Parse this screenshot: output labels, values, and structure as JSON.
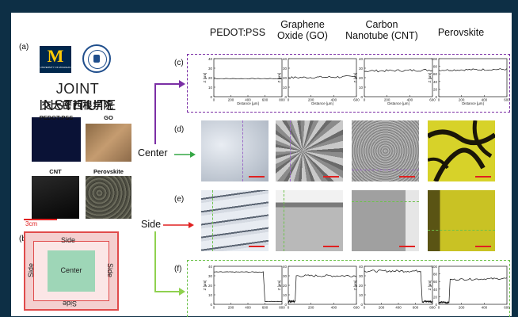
{
  "panels": {
    "a": "(a)",
    "b": "(b)",
    "c": "(c)",
    "d": "(d)",
    "e": "(e)",
    "f": "(f)"
  },
  "columns": [
    {
      "line1": "PEDOT:PSS",
      "line2": ""
    },
    {
      "line1": "Graphene",
      "line2": "Oxide (GO)"
    },
    {
      "line1": "Carbon",
      "line2": "Nanotube (CNT)"
    },
    {
      "line1": "Perovskite",
      "line2": ""
    }
  ],
  "logo": {
    "university": "UNIVERSITY OF MICHIGAN",
    "m": "M",
    "institute": "JOINT INSTITUTE",
    "chinese": "交大密西根学院"
  },
  "samples": [
    "PEDOT:PSS",
    "GO",
    "CNT",
    "Perovskite"
  ],
  "scale_label": "3cm",
  "schematic": {
    "center": "Center",
    "side_top": "Side",
    "side_right": "Side",
    "side_left": "Side",
    "side_bottom": "Side"
  },
  "rows": {
    "center": "Center",
    "side": "Side"
  },
  "profile_axes": {
    "y_label": "Z [µm]",
    "x_label": "Distance [µm]"
  },
  "colors": {
    "purple": "#7b2fa5",
    "green": "#6cc24a",
    "red": "#e02020",
    "background": "#0d2f45"
  },
  "chart_data": [
    {
      "type": "line",
      "title": "PEDOT:PSS center",
      "xlabel": "Distance [µm]",
      "ylabel": "Z [µm]",
      "xlim": [
        0,
        800
      ],
      "ylim": [
        0,
        40
      ],
      "x_ticks": [
        "0",
        "200",
        "400",
        "600",
        "800"
      ],
      "y_ticks": [
        "0",
        "10",
        "20",
        "30",
        "40"
      ],
      "series": [
        {
          "x": [
            0,
            800
          ],
          "y": [
            19,
            19
          ]
        }
      ]
    },
    {
      "type": "line",
      "title": "GO center",
      "xlabel": "Distance [µm]",
      "ylabel": "Z [µm]",
      "xlim": [
        0,
        600
      ],
      "ylim": [
        0,
        40
      ],
      "x_ticks": [
        "0",
        "200",
        "400",
        "600"
      ],
      "y_ticks": [
        "0",
        "10",
        "20",
        "30",
        "40"
      ],
      "series": [
        {
          "x": [
            0,
            600
          ],
          "y": [
            20,
            21
          ]
        }
      ]
    },
    {
      "type": "line",
      "title": "CNT center",
      "xlabel": "Distance [µm]",
      "ylabel": "Z [µm]",
      "xlim": [
        0,
        600
      ],
      "ylim": [
        0,
        40
      ],
      "x_ticks": [
        "0",
        "200",
        "400",
        "600"
      ],
      "y_ticks": [
        "0",
        "10",
        "20",
        "30",
        "40"
      ],
      "series": [
        {
          "x": [
            0,
            600
          ],
          "y": [
            27,
            28
          ]
        }
      ]
    },
    {
      "type": "line",
      "title": "Perovskite center",
      "xlabel": "Distance [µm]",
      "ylabel": "Z [µm]",
      "xlim": [
        0,
        600
      ],
      "ylim": [
        0,
        100
      ],
      "x_ticks": [
        "0",
        "200",
        "400",
        "600"
      ],
      "y_ticks": [
        "0",
        "20",
        "40",
        "60",
        "80",
        "100"
      ],
      "series": [
        {
          "x": [
            0,
            600
          ],
          "y": [
            70,
            72
          ]
        }
      ]
    },
    {
      "type": "line",
      "title": "PEDOT:PSS side",
      "xlabel": "Distance [µm]",
      "ylabel": "Z [µm]",
      "xlim": [
        0,
        800
      ],
      "ylim": [
        0,
        40
      ],
      "x_ticks": [
        "0",
        "200",
        "400",
        "600",
        "800"
      ],
      "y_ticks": [
        "0",
        "10",
        "20",
        "30",
        "40"
      ],
      "series": [
        {
          "x": [
            0,
            580,
            600,
            800
          ],
          "y": [
            34,
            34,
            3,
            3
          ]
        }
      ]
    },
    {
      "type": "line",
      "title": "GO side",
      "xlabel": "Distance [µm]",
      "ylabel": "Z [µm]",
      "xlim": [
        0,
        600
      ],
      "ylim": [
        0,
        40
      ],
      "x_ticks": [
        "0",
        "200",
        "400",
        "600"
      ],
      "y_ticks": [
        "0",
        "10",
        "20",
        "30",
        "40"
      ],
      "series": [
        {
          "x": [
            0,
            60,
            70,
            600
          ],
          "y": [
            3,
            3,
            30,
            30
          ]
        }
      ]
    },
    {
      "type": "line",
      "title": "CNT side",
      "xlabel": "Distance [µm]",
      "ylabel": "Z [µm]",
      "xlim": [
        0,
        800
      ],
      "ylim": [
        0,
        40
      ],
      "x_ticks": [
        "0",
        "200",
        "400",
        "600",
        "800"
      ],
      "y_ticks": [
        "0",
        "10",
        "20",
        "30",
        "40"
      ],
      "series": [
        {
          "x": [
            0,
            660,
            680,
            800
          ],
          "y": [
            35,
            35,
            3,
            3
          ]
        }
      ]
    },
    {
      "type": "line",
      "title": "Perovskite side",
      "xlabel": "Distance [µm]",
      "ylabel": "Z [µm]",
      "xlim": [
        0,
        600
      ],
      "ylim": [
        0,
        100
      ],
      "x_ticks": [
        "0",
        "200",
        "400",
        "600"
      ],
      "y_ticks": [
        "0",
        "20",
        "40",
        "60",
        "80",
        "100"
      ],
      "series": [
        {
          "x": [
            0,
            90,
            100,
            600
          ],
          "y": [
            5,
            5,
            65,
            68
          ]
        }
      ]
    }
  ]
}
